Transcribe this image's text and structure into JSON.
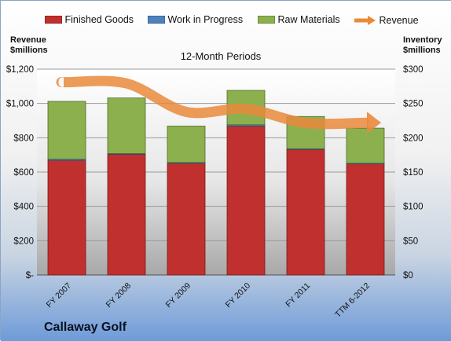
{
  "chart_data": {
    "type": "bar",
    "stacked": true,
    "subtitle": "12-Month Periods",
    "company": "Callaway Golf",
    "left_axis_title": [
      "Revenue",
      "$millions"
    ],
    "right_axis_title": [
      "Inventory",
      "$millions"
    ],
    "categories": [
      "FY 2007",
      "FY 2008",
      "FY 2009",
      "FY 2010",
      "FY 2011",
      "TTM 6-2012"
    ],
    "left_ticks": [
      "$-",
      "$200",
      "$400",
      "$600",
      "$800",
      "$1,000",
      "$1,200"
    ],
    "right_ticks": [
      "$0",
      "$50",
      "$100",
      "$150",
      "$200",
      "$250",
      "$300"
    ],
    "ylim_left": [
      0,
      1200
    ],
    "ylim_right": [
      0,
      300
    ],
    "series": [
      {
        "name": "Finished Goods",
        "axis": "right",
        "color": "#c0302f",
        "values": [
          167,
          176,
          163,
          217,
          183,
          162
        ]
      },
      {
        "name": "Work in Progress",
        "axis": "right",
        "color": "#4f81bd",
        "values": [
          2,
          1,
          1,
          2,
          1,
          1
        ]
      },
      {
        "name": "Raw Materials",
        "axis": "right",
        "color": "#8db04f",
        "values": [
          84,
          81,
          53,
          50,
          47,
          51
        ]
      }
    ],
    "line_series": {
      "name": "Revenue",
      "axis": "left",
      "color": "#e98a3b",
      "values": [
        1124,
        1117,
        951,
        968,
        886,
        888
      ]
    },
    "grid": true,
    "legend": "top"
  }
}
